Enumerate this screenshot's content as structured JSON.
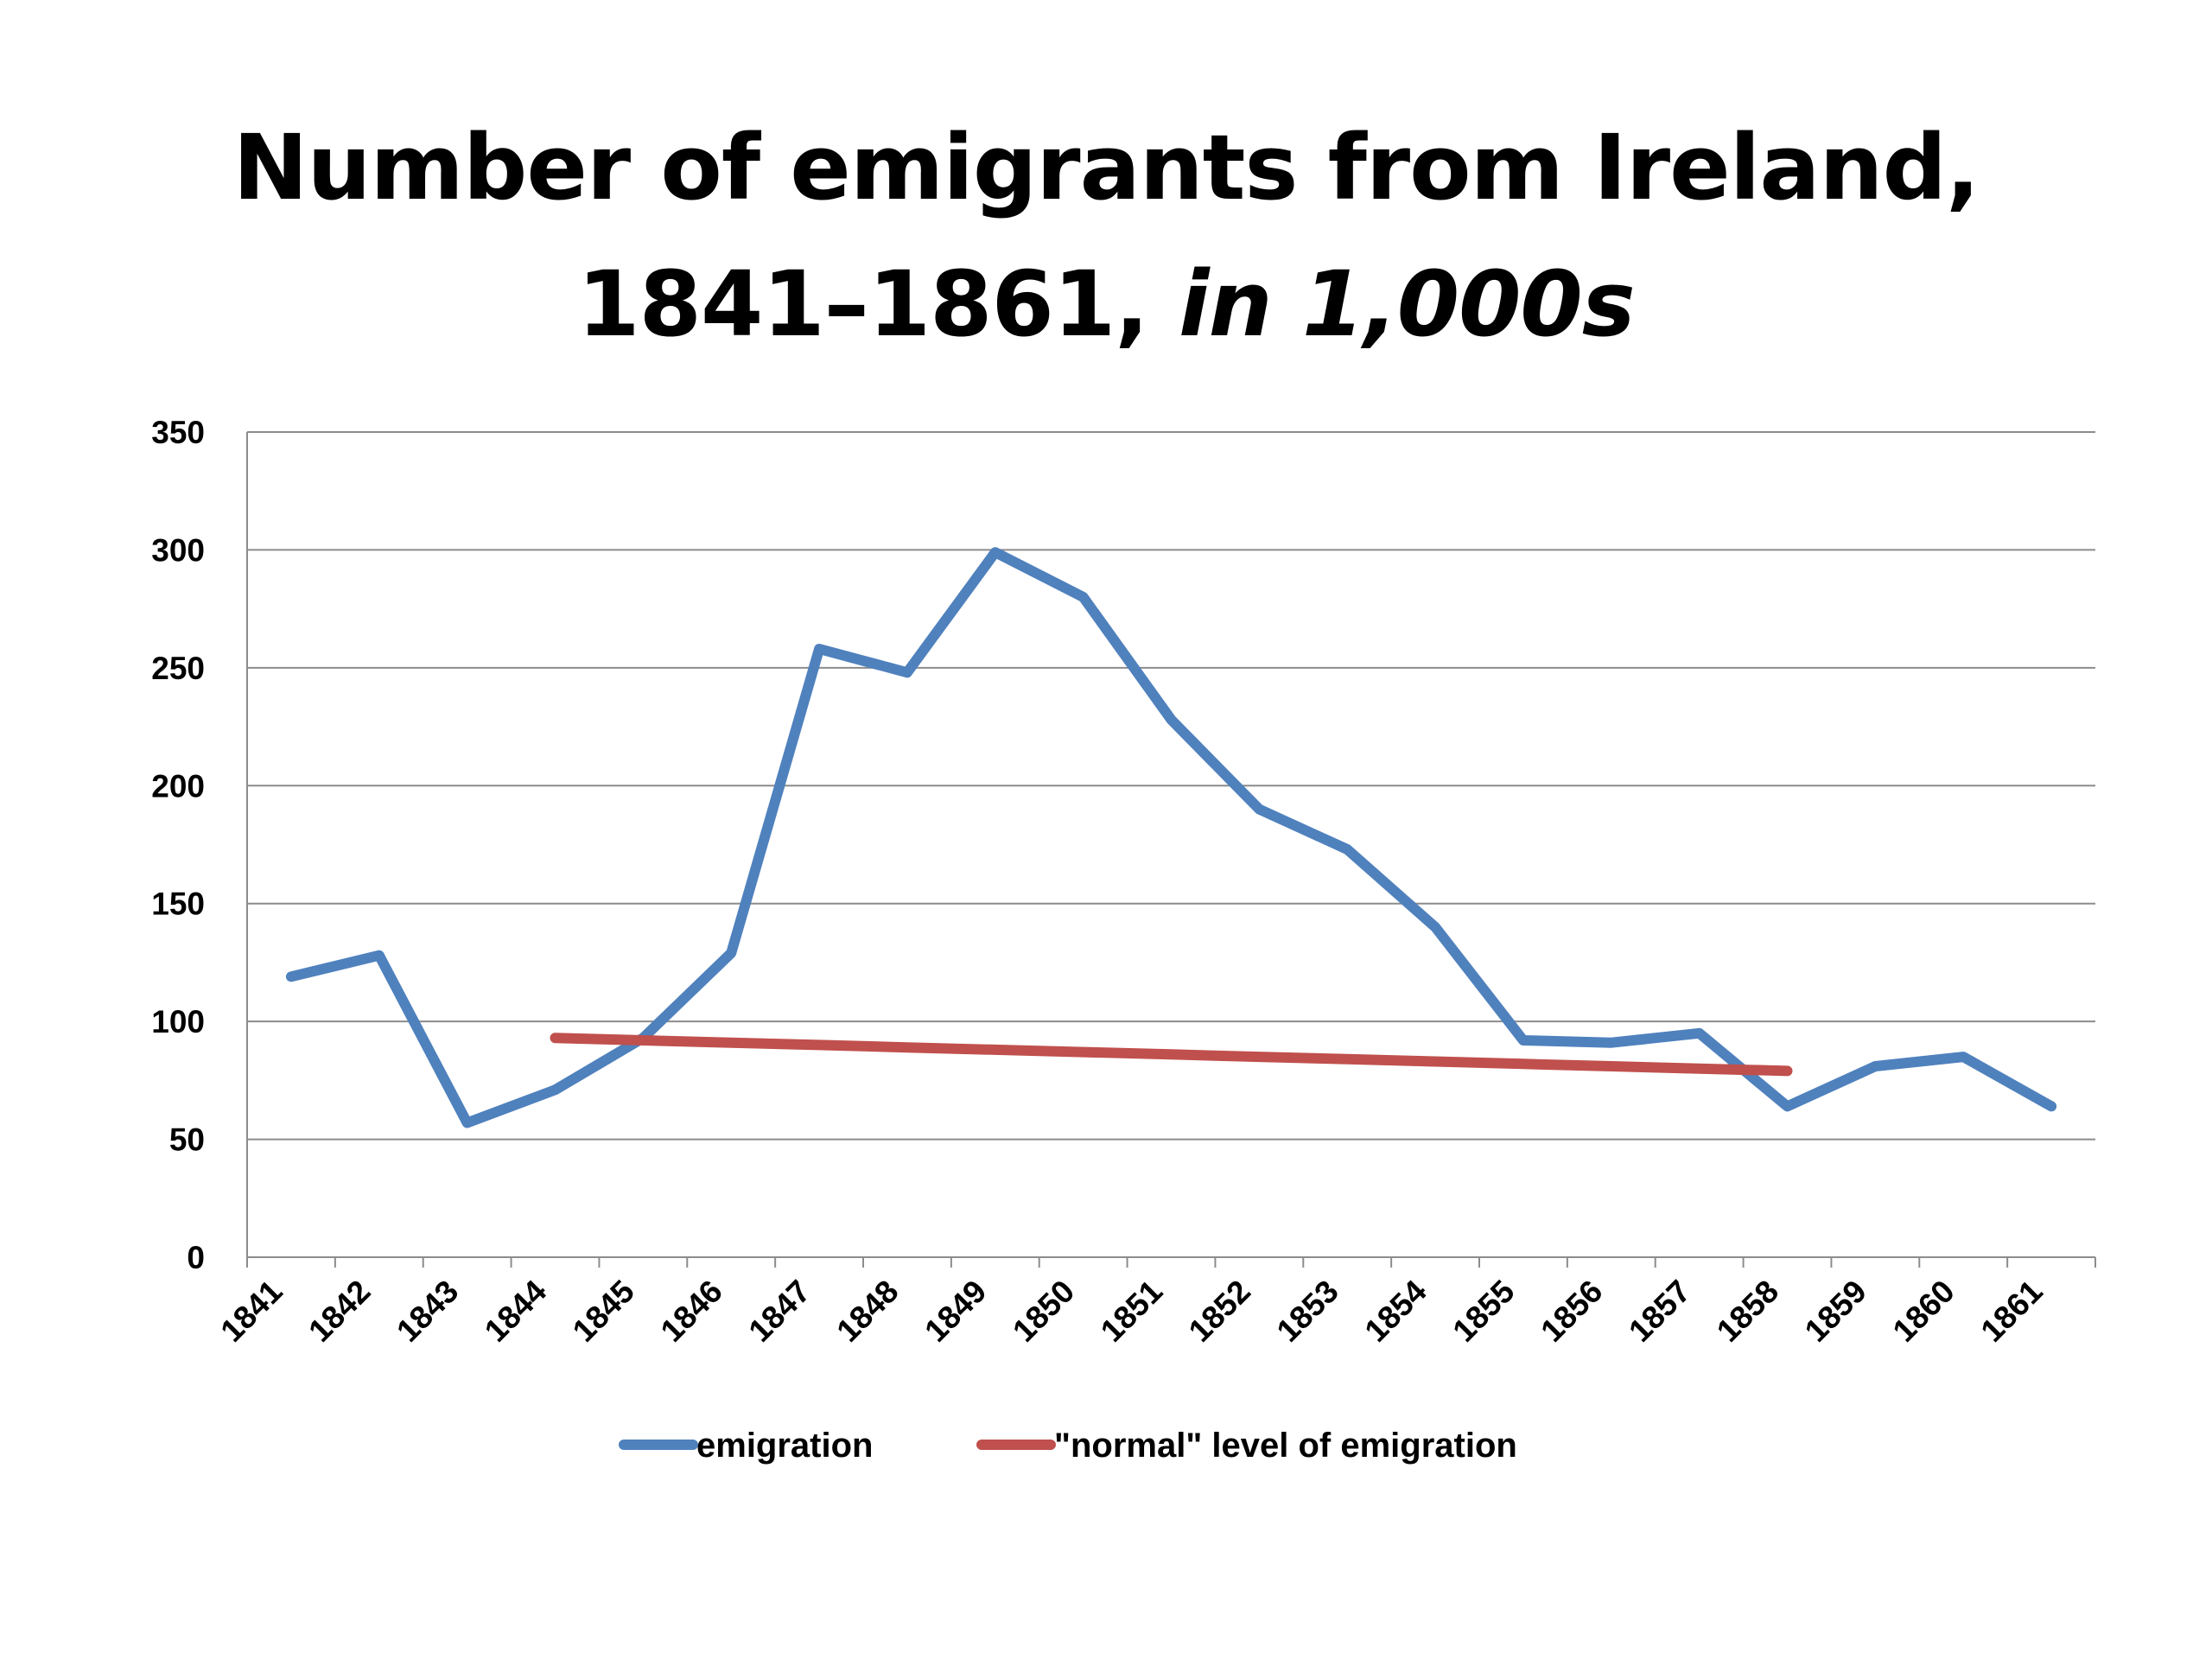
{
  "title_line1": "Number of emigrants from Ireland,",
  "title_line2_main": "1841–1861,",
  "title_line2_italic": "in 1,000s",
  "chart_data": {
    "type": "line",
    "x": [
      "1841",
      "1842",
      "1843",
      "1844",
      "1845",
      "1846",
      "1847",
      "1848",
      "1849",
      "1850",
      "1851",
      "1852",
      "1853",
      "1854",
      "1855",
      "1856",
      "1857",
      "1858",
      "1859",
      "1860",
      "1861"
    ],
    "series": [
      {
        "name": "emigration",
        "color": "#4F81BD",
        "values": [
          119,
          128,
          57,
          71,
          93,
          129,
          258,
          248,
          299,
          280,
          228,
          190,
          173,
          140,
          92,
          91,
          95,
          64,
          81,
          85,
          64
        ]
      },
      {
        "name": "\"normal\" level of emigration",
        "color": "#C0504D",
        "values": [
          null,
          null,
          null,
          93,
          92,
          91,
          90,
          89,
          88,
          87,
          86,
          85,
          84,
          83,
          82,
          81,
          80,
          79,
          null,
          null,
          null
        ]
      }
    ],
    "ylim": [
      0,
      350
    ],
    "yticks": [
      0,
      50,
      100,
      150,
      200,
      250,
      300,
      350
    ],
    "grid": true,
    "legend": "bottom"
  }
}
